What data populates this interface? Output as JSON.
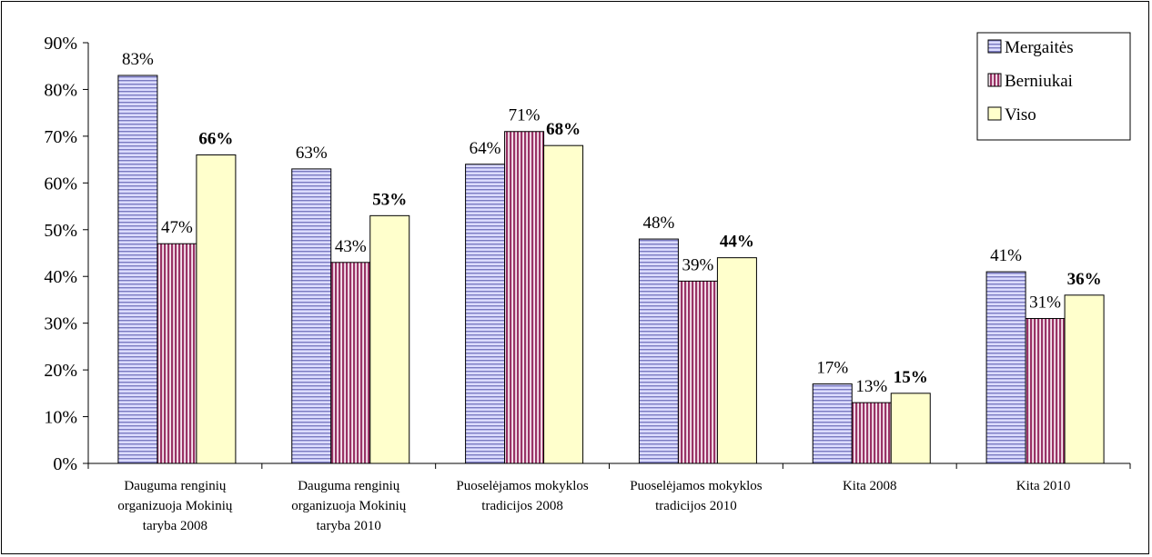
{
  "chart_data": {
    "type": "bar",
    "categories": [
      [
        "Dauguma renginių",
        "organizuoja Mokinių",
        "taryba 2008"
      ],
      [
        "Dauguma renginių",
        "organizuoja Mokinių",
        "taryba 2010"
      ],
      [
        "Puoselėjamos mokyklos",
        "tradicijos 2008"
      ],
      [
        "Puoselėjamos mokyklos",
        "tradicijos 2010"
      ],
      [
        "Kita 2008"
      ],
      [
        "Kita 2010"
      ]
    ],
    "series": [
      {
        "name": "Mergaitės",
        "values": [
          83,
          63,
          64,
          48,
          17,
          41
        ],
        "labels": [
          "83%",
          "63%",
          "64%",
          "48%",
          "17%",
          "41%"
        ],
        "bold": false
      },
      {
        "name": "Berniukai",
        "values": [
          47,
          43,
          71,
          39,
          13,
          31
        ],
        "labels": [
          "47%",
          "43%",
          "71%",
          "39%",
          "13%",
          "31%"
        ],
        "bold": false
      },
      {
        "name": "Viso",
        "values": [
          66,
          53,
          68,
          44,
          15,
          36
        ],
        "labels": [
          "66%",
          "53%",
          "68%",
          "44%",
          "15%",
          "36%"
        ],
        "bold": true
      }
    ],
    "y_ticks": [
      "0%",
      "10%",
      "20%",
      "30%",
      "40%",
      "50%",
      "60%",
      "70%",
      "80%",
      "90%"
    ],
    "ylim": [
      0,
      90
    ],
    "y_unit": "percent",
    "legend_position": "top-right",
    "grid": false,
    "colors": {
      "Mergaitės": {
        "fill": "#ccccff",
        "stripe": "#7777bb",
        "pattern": "horizontal-lines"
      },
      "Berniukai": {
        "fill": "#993366",
        "stripe": "#f4e4ee",
        "pattern": "vertical-lines"
      },
      "Viso": {
        "fill": "#ffffcc",
        "stripe": "#ffffcc",
        "pattern": "solid"
      }
    }
  }
}
